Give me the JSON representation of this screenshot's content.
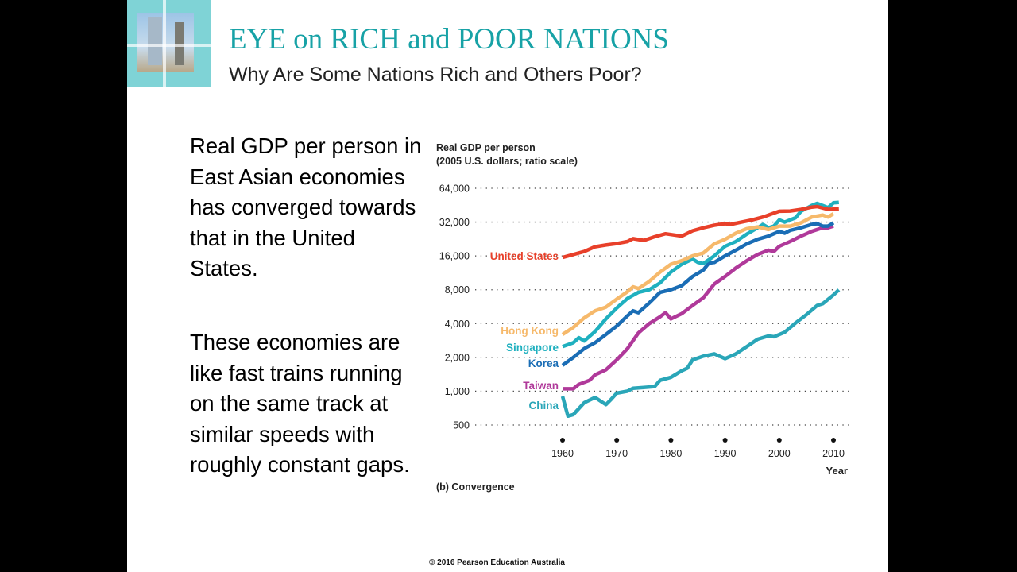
{
  "slide": {
    "title": "EYE on RICH and POOR NATIONS",
    "subtitle": "Why Are Some Nations Rich and Others Poor?",
    "paragraphs": [
      "Real GDP per person in East Asian economies has converged towards that in the United States.",
      "These economies are like fast trains running on the same track at similar speeds with roughly constant gaps."
    ],
    "copyright": "© 2016 Pearson Education Australia",
    "accent_color": "#17a2a6"
  },
  "chart_data": {
    "type": "line",
    "title": "Real GDP per person",
    "ylabel": "(2005 U.S. dollars; ratio scale)",
    "xlabel": "Year",
    "caption": "(b) Convergence",
    "yscale": "log",
    "ylim": [
      500,
      64000
    ],
    "xlim": [
      1960,
      2011
    ],
    "yticks": [
      500,
      1000,
      2000,
      4000,
      8000,
      16000,
      32000,
      64000
    ],
    "ytick_labels": [
      "500",
      "1,000",
      "2,000",
      "4,000",
      "8,000",
      "16,000",
      "32,000",
      "64,000"
    ],
    "xticks": [
      1960,
      1970,
      1980,
      1990,
      2000,
      2010
    ],
    "xtick_labels": [
      "1960",
      "1970",
      "1980",
      "1990",
      "2000",
      "2010"
    ],
    "grid": "horizontal dotted",
    "series": [
      {
        "name": "United States",
        "color": "#e8402a",
        "x": [
          1960,
          1962,
          1964,
          1966,
          1968,
          1970,
          1972,
          1973,
          1975,
          1977,
          1979,
          1980,
          1982,
          1984,
          1986,
          1988,
          1990,
          1991,
          1993,
          1995,
          1997,
          1999,
          2000,
          2002,
          2004,
          2006,
          2007,
          2009,
          2011
        ],
        "y": [
          15500,
          16500,
          17500,
          19300,
          20000,
          20600,
          21500,
          22800,
          22000,
          23700,
          25200,
          24800,
          24000,
          26800,
          28500,
          30000,
          31000,
          30500,
          32000,
          33500,
          35500,
          38500,
          40000,
          40200,
          41500,
          43500,
          44000,
          41500,
          42000
        ]
      },
      {
        "name": "Hong Kong",
        "color": "#f6b96b",
        "x": [
          1960,
          1962,
          1964,
          1966,
          1968,
          1970,
          1972,
          1973,
          1974,
          1976,
          1978,
          1980,
          1982,
          1984,
          1986,
          1988,
          1990,
          1992,
          1994,
          1996,
          1998,
          2000,
          2002,
          2004,
          2006,
          2008,
          2009,
          2010
        ],
        "y": [
          3200,
          3700,
          4500,
          5200,
          5600,
          6600,
          7700,
          8500,
          8200,
          9500,
          11500,
          13500,
          14500,
          16000,
          17000,
          20500,
          22500,
          25500,
          28000,
          29000,
          27500,
          29500,
          29500,
          31500,
          35500,
          37000,
          35500,
          38000
        ]
      },
      {
        "name": "Singapore",
        "color": "#1fb0bf",
        "x": [
          1960,
          1962,
          1963,
          1964,
          1966,
          1968,
          1970,
          1972,
          1974,
          1976,
          1978,
          1980,
          1982,
          1984,
          1985,
          1986,
          1988,
          1990,
          1992,
          1994,
          1996,
          1997,
          1998,
          1999,
          2000,
          2001,
          2002,
          2003,
          2004,
          2006,
          2007,
          2009,
          2010,
          2011
        ],
        "y": [
          2500,
          2700,
          3000,
          2800,
          3400,
          4400,
          5500,
          6700,
          7600,
          8000,
          9200,
          11500,
          13500,
          15000,
          14000,
          13700,
          16000,
          19500,
          21500,
          25000,
          28500,
          30500,
          28500,
          29500,
          33500,
          32000,
          33500,
          35000,
          40000,
          45000,
          47000,
          43000,
          47500,
          48000
        ]
      },
      {
        "name": "Korea",
        "color": "#1a6db5",
        "x": [
          1960,
          1962,
          1964,
          1966,
          1968,
          1970,
          1972,
          1973,
          1974,
          1976,
          1978,
          1980,
          1982,
          1984,
          1986,
          1987,
          1988,
          1990,
          1992,
          1994,
          1996,
          1998,
          2000,
          2001,
          2002,
          2004,
          2006,
          2007,
          2008,
          2009,
          2010
        ],
        "y": [
          1700,
          2000,
          2400,
          2700,
          3200,
          3800,
          4700,
          5200,
          5000,
          6100,
          7600,
          8000,
          8700,
          10500,
          12000,
          13800,
          14000,
          16000,
          18000,
          20500,
          22500,
          24000,
          26500,
          25500,
          27000,
          28500,
          30500,
          31000,
          29500,
          29500,
          31500
        ]
      },
      {
        "name": "Taiwan",
        "color": "#b0399a",
        "x": [
          1960,
          1962,
          1963,
          1965,
          1966,
          1968,
          1970,
          1972,
          1974,
          1976,
          1978,
          1979,
          1980,
          1982,
          1984,
          1986,
          1988,
          1990,
          1992,
          1994,
          1996,
          1998,
          1999,
          2000,
          2002,
          2004,
          2006,
          2008,
          2009,
          2010
        ],
        "y": [
          1050,
          1050,
          1150,
          1250,
          1400,
          1550,
          1900,
          2400,
          3300,
          4000,
          4600,
          5000,
          4400,
          4900,
          5800,
          6800,
          9000,
          10500,
          12500,
          14500,
          16500,
          18000,
          17500,
          19500,
          21500,
          24000,
          26500,
          28500,
          28500,
          29500
        ]
      },
      {
        "name": "China",
        "color": "#2aa6b8",
        "x": [
          1960,
          1961,
          1962,
          1963,
          1964,
          1966,
          1968,
          1969,
          1970,
          1972,
          1973,
          1975,
          1977,
          1978,
          1980,
          1982,
          1983,
          1984,
          1986,
          1988,
          1990,
          1992,
          1994,
          1996,
          1998,
          1999,
          2001,
          2003,
          2005,
          2007,
          2008,
          2010,
          2011
        ],
        "y": [
          900,
          600,
          620,
          700,
          790,
          880,
          760,
          850,
          960,
          1000,
          1060,
          1080,
          1100,
          1250,
          1330,
          1520,
          1600,
          1900,
          2050,
          2150,
          1950,
          2150,
          2500,
          2900,
          3100,
          3050,
          3350,
          4050,
          4800,
          5800,
          6000,
          7200,
          8000
        ]
      }
    ]
  }
}
